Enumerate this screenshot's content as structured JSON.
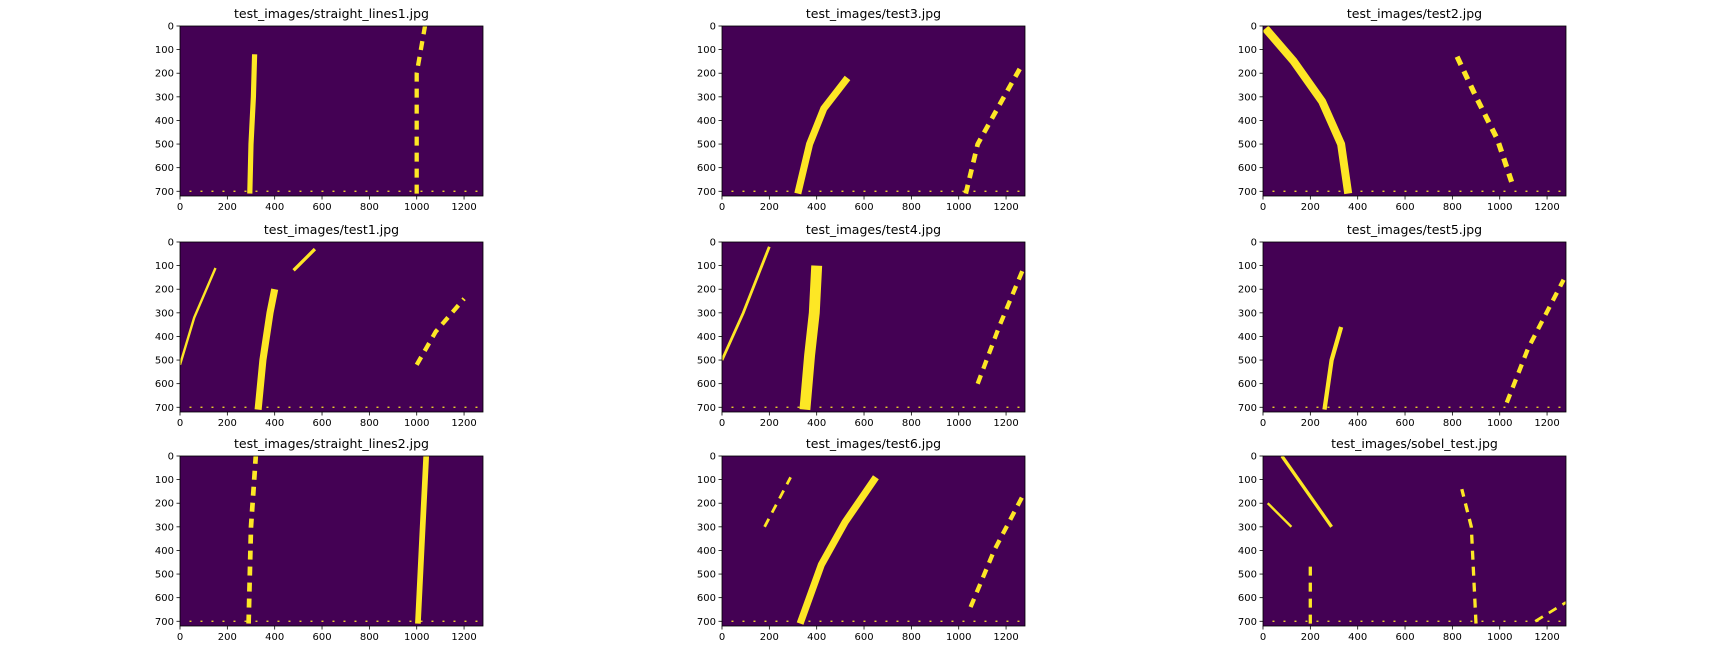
{
  "figure": {
    "background": "#ffffff",
    "plot_bg": "#440154",
    "mark_color": "#fde725"
  },
  "chart_data": [
    {
      "type": "heatmap",
      "title": "test_images/straight_lines1.jpg",
      "xlim": [
        0,
        1280
      ],
      "ylim": [
        720,
        0
      ],
      "xticks": [
        0,
        200,
        400,
        600,
        800,
        1000,
        1200
      ],
      "yticks": [
        0,
        100,
        200,
        300,
        400,
        500,
        600,
        700
      ],
      "lanes": [
        {
          "points": [
            [
              315,
              120
            ],
            [
              310,
              300
            ],
            [
              300,
              500
            ],
            [
              295,
              710
            ]
          ],
          "width": 22
        },
        {
          "points": [
            [
              1000,
              710
            ],
            [
              1000,
              450
            ],
            [
              1000,
              200
            ],
            [
              1035,
              0
            ]
          ],
          "width": 18,
          "dashed": true
        }
      ]
    },
    {
      "type": "heatmap",
      "title": "test_images/test3.jpg",
      "xlim": [
        0,
        1280
      ],
      "ylim": [
        720,
        0
      ],
      "xticks": [
        0,
        200,
        400,
        600,
        800,
        1000,
        1200
      ],
      "yticks": [
        0,
        100,
        200,
        300,
        400,
        500,
        600,
        700
      ],
      "lanes": [
        {
          "points": [
            [
              320,
              710
            ],
            [
              370,
              500
            ],
            [
              430,
              350
            ],
            [
              530,
              220
            ]
          ],
          "width": 30
        },
        {
          "points": [
            [
              1030,
              710
            ],
            [
              1080,
              500
            ],
            [
              1180,
              320
            ],
            [
              1270,
              160
            ]
          ],
          "width": 20,
          "dashed": true
        }
      ]
    },
    {
      "type": "heatmap",
      "title": "test_images/test2.jpg",
      "xlim": [
        0,
        1280
      ],
      "ylim": [
        720,
        0
      ],
      "xticks": [
        0,
        200,
        400,
        600,
        800,
        1000,
        1200
      ],
      "yticks": [
        0,
        100,
        200,
        300,
        400,
        500,
        600,
        700
      ],
      "lanes": [
        {
          "points": [
            [
              10,
              10
            ],
            [
              130,
              150
            ],
            [
              250,
              320
            ],
            [
              330,
              500
            ],
            [
              360,
              710
            ]
          ],
          "width": 34
        },
        {
          "points": [
            [
              820,
              130
            ],
            [
              900,
              300
            ],
            [
              990,
              480
            ],
            [
              1050,
              660
            ]
          ],
          "width": 22,
          "dashed": true
        }
      ]
    },
    {
      "type": "heatmap",
      "title": "test_images/test1.jpg",
      "xlim": [
        0,
        1280
      ],
      "ylim": [
        720,
        0
      ],
      "xticks": [
        0,
        200,
        400,
        600,
        800,
        1000,
        1200
      ],
      "yticks": [
        0,
        100,
        200,
        300,
        400,
        500,
        600,
        700
      ],
      "lanes": [
        {
          "points": [
            [
              0,
              520
            ],
            [
              60,
              320
            ],
            [
              150,
              110
            ]
          ],
          "width": 10
        },
        {
          "points": [
            [
              330,
              710
            ],
            [
              350,
              500
            ],
            [
              380,
              300
            ],
            [
              400,
              200
            ]
          ],
          "width": 30
        },
        {
          "points": [
            [
              1000,
              520
            ],
            [
              1080,
              380
            ],
            [
              1200,
              240
            ]
          ],
          "width": 18,
          "dashed": true
        },
        {
          "points": [
            [
              480,
              120
            ],
            [
              570,
              30
            ]
          ],
          "width": 14
        }
      ]
    },
    {
      "type": "heatmap",
      "title": "test_images/test4.jpg",
      "xlim": [
        0,
        1280
      ],
      "ylim": [
        720,
        0
      ],
      "xticks": [
        0,
        200,
        400,
        600,
        800,
        1000,
        1200
      ],
      "yticks": [
        0,
        100,
        200,
        300,
        400,
        500,
        600,
        700
      ],
      "lanes": [
        {
          "points": [
            [
              0,
              500
            ],
            [
              90,
              300
            ],
            [
              200,
              20
            ]
          ],
          "width": 12
        },
        {
          "points": [
            [
              350,
              710
            ],
            [
              370,
              480
            ],
            [
              390,
              300
            ],
            [
              400,
              100
            ]
          ],
          "width": 46
        },
        {
          "points": [
            [
              1080,
              600
            ],
            [
              1170,
              360
            ],
            [
              1270,
              120
            ]
          ],
          "width": 18,
          "dashed": true
        }
      ]
    },
    {
      "type": "heatmap",
      "title": "test_images/test5.jpg",
      "xlim": [
        0,
        1280
      ],
      "ylim": [
        720,
        0
      ],
      "xticks": [
        0,
        200,
        400,
        600,
        800,
        1000,
        1200
      ],
      "yticks": [
        0,
        100,
        200,
        300,
        400,
        500,
        600,
        700
      ],
      "lanes": [
        {
          "points": [
            [
              260,
              710
            ],
            [
              290,
              500
            ],
            [
              330,
              360
            ]
          ],
          "width": 18
        },
        {
          "points": [
            [
              1030,
              680
            ],
            [
              1120,
              450
            ],
            [
              1270,
              160
            ]
          ],
          "width": 18,
          "dashed": true
        }
      ]
    },
    {
      "type": "heatmap",
      "title": "test_images/straight_lines2.jpg",
      "xlim": [
        0,
        1280
      ],
      "ylim": [
        720,
        0
      ],
      "xticks": [
        0,
        200,
        400,
        600,
        800,
        1000,
        1200
      ],
      "yticks": [
        0,
        100,
        200,
        300,
        400,
        500,
        600,
        700
      ],
      "lanes": [
        {
          "points": [
            [
              290,
              710
            ],
            [
              300,
              300
            ],
            [
              320,
              0
            ]
          ],
          "width": 20,
          "dashed": true
        },
        {
          "points": [
            [
              1005,
              710
            ],
            [
              1020,
              400
            ],
            [
              1040,
              0
            ]
          ],
          "width": 24
        }
      ]
    },
    {
      "type": "heatmap",
      "title": "test_images/test6.jpg",
      "xlim": [
        0,
        1280
      ],
      "ylim": [
        720,
        0
      ],
      "xticks": [
        0,
        200,
        400,
        600,
        800,
        1000,
        1200
      ],
      "yticks": [
        0,
        100,
        200,
        300,
        400,
        500,
        600,
        700
      ],
      "lanes": [
        {
          "points": [
            [
              330,
              710
            ],
            [
              420,
              460
            ],
            [
              520,
              280
            ],
            [
              650,
              90
            ]
          ],
          "width": 30
        },
        {
          "points": [
            [
              180,
              300
            ],
            [
              290,
              90
            ]
          ],
          "width": 12,
          "dashed": true
        },
        {
          "points": [
            [
              1050,
              640
            ],
            [
              1150,
              400
            ],
            [
              1270,
              170
            ]
          ],
          "width": 18,
          "dashed": true
        }
      ]
    },
    {
      "type": "heatmap",
      "title": "test_images/sobel_test.jpg",
      "xlim": [
        0,
        1280
      ],
      "ylim": [
        720,
        0
      ],
      "xticks": [
        0,
        200,
        400,
        600,
        800,
        1000,
        1200
      ],
      "yticks": [
        0,
        100,
        200,
        300,
        400,
        500,
        600,
        700
      ],
      "lanes": [
        {
          "points": [
            [
              80,
              0
            ],
            [
              290,
              300
            ]
          ],
          "width": 14
        },
        {
          "points": [
            [
              20,
              200
            ],
            [
              120,
              300
            ]
          ],
          "width": 10
        },
        {
          "points": [
            [
              200,
              710
            ],
            [
              200,
              450
            ]
          ],
          "width": 14,
          "dashed": true
        },
        {
          "points": [
            [
              900,
              710
            ],
            [
              880,
              300
            ],
            [
              840,
              140
            ]
          ],
          "width": 14,
          "dashed": true
        },
        {
          "points": [
            [
              1150,
              700
            ],
            [
              1280,
              620
            ]
          ],
          "width": 12,
          "dashed": true
        }
      ]
    }
  ]
}
